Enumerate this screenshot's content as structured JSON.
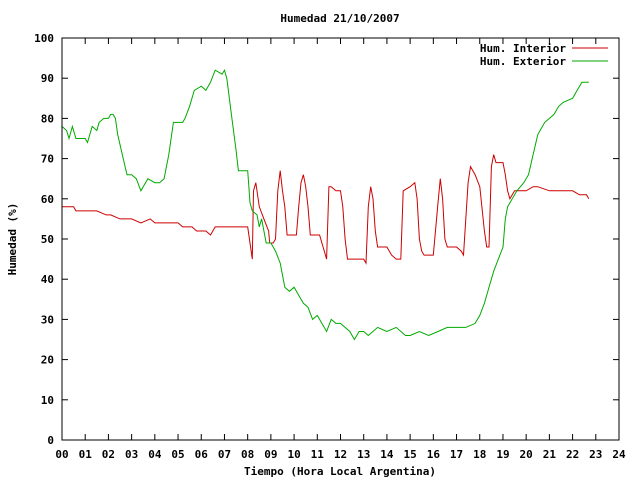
{
  "chart_data": {
    "type": "line",
    "title": "Humedad 21/10/2007",
    "xlabel": "Tiempo (Hora Local Argentina)",
    "ylabel": "Humedad (%)",
    "xlim": [
      0,
      24
    ],
    "ylim": [
      0,
      100
    ],
    "x_ticks": [
      0,
      1,
      2,
      3,
      4,
      5,
      6,
      7,
      8,
      9,
      10,
      11,
      12,
      13,
      14,
      15,
      16,
      17,
      18,
      19,
      20,
      21,
      22,
      23,
      24
    ],
    "x_tick_labels": [
      "00",
      "01",
      "02",
      "03",
      "04",
      "05",
      "06",
      "07",
      "08",
      "09",
      "10",
      "11",
      "12",
      "13",
      "14",
      "15",
      "16",
      "17",
      "18",
      "19",
      "20",
      "21",
      "22",
      "23",
      "24"
    ],
    "y_ticks": [
      0,
      10,
      20,
      30,
      40,
      50,
      60,
      70,
      80,
      90,
      100
    ],
    "y_tick_labels": [
      "0",
      "10",
      "20",
      "30",
      "40",
      "50",
      "60",
      "70",
      "80",
      "90",
      "100"
    ],
    "grid": false,
    "legend_position": "top-right",
    "series": [
      {
        "name": "Hum. Interior",
        "color": "#cc0000",
        "points": [
          [
            0.0,
            58
          ],
          [
            0.5,
            58
          ],
          [
            0.6,
            57
          ],
          [
            0.8,
            57
          ],
          [
            1.2,
            57
          ],
          [
            1.5,
            57
          ],
          [
            1.9,
            56
          ],
          [
            2.1,
            56
          ],
          [
            2.5,
            55
          ],
          [
            3.0,
            55
          ],
          [
            3.4,
            54
          ],
          [
            3.8,
            55
          ],
          [
            4.0,
            54
          ],
          [
            4.5,
            54
          ],
          [
            5.0,
            54
          ],
          [
            5.2,
            53
          ],
          [
            5.6,
            53
          ],
          [
            5.8,
            52
          ],
          [
            6.2,
            52
          ],
          [
            6.4,
            51
          ],
          [
            6.6,
            53
          ],
          [
            7.0,
            53
          ],
          [
            7.4,
            53
          ],
          [
            7.9,
            53
          ],
          [
            8.0,
            53
          ],
          [
            8.1,
            49
          ],
          [
            8.2,
            45
          ],
          [
            8.25,
            62
          ],
          [
            8.35,
            64
          ],
          [
            8.5,
            58
          ],
          [
            8.7,
            55
          ],
          [
            8.9,
            52
          ],
          [
            8.95,
            49
          ],
          [
            9.1,
            49
          ],
          [
            9.2,
            50
          ],
          [
            9.3,
            62
          ],
          [
            9.4,
            67
          ],
          [
            9.5,
            62
          ],
          [
            9.6,
            58
          ],
          [
            9.7,
            51
          ],
          [
            9.9,
            51
          ],
          [
            10.1,
            51
          ],
          [
            10.2,
            58
          ],
          [
            10.3,
            64
          ],
          [
            10.4,
            66
          ],
          [
            10.5,
            63
          ],
          [
            10.6,
            58
          ],
          [
            10.7,
            51
          ],
          [
            10.9,
            51
          ],
          [
            11.1,
            51
          ],
          [
            11.2,
            49
          ],
          [
            11.3,
            47
          ],
          [
            11.4,
            45
          ],
          [
            11.5,
            63
          ],
          [
            11.6,
            63
          ],
          [
            11.8,
            62
          ],
          [
            12.0,
            62
          ],
          [
            12.1,
            58
          ],
          [
            12.2,
            50
          ],
          [
            12.3,
            45
          ],
          [
            12.5,
            45
          ],
          [
            13.0,
            45
          ],
          [
            13.1,
            44
          ],
          [
            13.2,
            58
          ],
          [
            13.3,
            63
          ],
          [
            13.4,
            60
          ],
          [
            13.5,
            52
          ],
          [
            13.6,
            48
          ],
          [
            14.0,
            48
          ],
          [
            14.2,
            46
          ],
          [
            14.4,
            45
          ],
          [
            14.6,
            45
          ],
          [
            14.7,
            62
          ],
          [
            15.0,
            63
          ],
          [
            15.2,
            64
          ],
          [
            15.3,
            60
          ],
          [
            15.4,
            50
          ],
          [
            15.5,
            47
          ],
          [
            15.6,
            46
          ],
          [
            16.0,
            46
          ],
          [
            16.2,
            59
          ],
          [
            16.3,
            65
          ],
          [
            16.4,
            60
          ],
          [
            16.5,
            50
          ],
          [
            16.6,
            48
          ],
          [
            17.0,
            48
          ],
          [
            17.2,
            47
          ],
          [
            17.3,
            46
          ],
          [
            17.5,
            64
          ],
          [
            17.6,
            68
          ],
          [
            17.8,
            66
          ],
          [
            18.0,
            63
          ],
          [
            18.2,
            52
          ],
          [
            18.3,
            48
          ],
          [
            18.4,
            48
          ],
          [
            18.5,
            68
          ],
          [
            18.6,
            71
          ],
          [
            18.7,
            69
          ],
          [
            19.0,
            69
          ],
          [
            19.1,
            66
          ],
          [
            19.2,
            62
          ],
          [
            19.3,
            60
          ],
          [
            19.5,
            62
          ],
          [
            20.0,
            62
          ],
          [
            20.3,
            63
          ],
          [
            20.5,
            63
          ],
          [
            21.0,
            62
          ],
          [
            21.3,
            62
          ],
          [
            21.6,
            62
          ],
          [
            22.0,
            62
          ],
          [
            22.3,
            61
          ],
          [
            22.6,
            61
          ],
          [
            22.7,
            60
          ]
        ]
      },
      {
        "name": "Hum. Exterior",
        "color": "#00aa00",
        "points": [
          [
            0.0,
            78
          ],
          [
            0.2,
            77
          ],
          [
            0.3,
            75
          ],
          [
            0.45,
            78
          ],
          [
            0.6,
            75
          ],
          [
            0.8,
            75
          ],
          [
            1.0,
            75
          ],
          [
            1.1,
            74
          ],
          [
            1.3,
            78
          ],
          [
            1.5,
            77
          ],
          [
            1.6,
            79
          ],
          [
            1.8,
            80
          ],
          [
            2.0,
            80
          ],
          [
            2.1,
            81
          ],
          [
            2.2,
            81
          ],
          [
            2.3,
            80
          ],
          [
            2.4,
            76
          ],
          [
            2.6,
            71
          ],
          [
            2.8,
            66
          ],
          [
            3.0,
            66
          ],
          [
            3.2,
            65
          ],
          [
            3.4,
            62
          ],
          [
            3.5,
            63
          ],
          [
            3.7,
            65
          ],
          [
            4.0,
            64
          ],
          [
            4.2,
            64
          ],
          [
            4.4,
            65
          ],
          [
            4.6,
            71
          ],
          [
            4.8,
            79
          ],
          [
            5.2,
            79
          ],
          [
            5.3,
            80
          ],
          [
            5.5,
            83
          ],
          [
            5.7,
            87
          ],
          [
            6.0,
            88
          ],
          [
            6.2,
            87
          ],
          [
            6.4,
            89
          ],
          [
            6.6,
            92
          ],
          [
            6.9,
            91
          ],
          [
            7.0,
            92
          ],
          [
            7.1,
            90
          ],
          [
            7.3,
            81
          ],
          [
            7.5,
            72
          ],
          [
            7.6,
            67
          ],
          [
            8.0,
            67
          ],
          [
            8.1,
            59
          ],
          [
            8.2,
            57
          ],
          [
            8.4,
            56
          ],
          [
            8.5,
            53
          ],
          [
            8.6,
            55
          ],
          [
            8.8,
            49
          ],
          [
            9.0,
            49
          ],
          [
            9.2,
            47
          ],
          [
            9.4,
            44
          ],
          [
            9.6,
            38
          ],
          [
            9.8,
            37
          ],
          [
            10.0,
            38
          ],
          [
            10.2,
            36
          ],
          [
            10.4,
            34
          ],
          [
            10.6,
            33
          ],
          [
            10.8,
            30
          ],
          [
            11.0,
            31
          ],
          [
            11.2,
            29
          ],
          [
            11.4,
            27
          ],
          [
            11.6,
            30
          ],
          [
            11.8,
            29
          ],
          [
            12.0,
            29
          ],
          [
            12.2,
            28
          ],
          [
            12.4,
            27
          ],
          [
            12.6,
            25
          ],
          [
            12.8,
            27
          ],
          [
            13.0,
            27
          ],
          [
            13.2,
            26
          ],
          [
            13.4,
            27
          ],
          [
            13.6,
            28
          ],
          [
            14.0,
            27
          ],
          [
            14.4,
            28
          ],
          [
            14.8,
            26
          ],
          [
            15.0,
            26
          ],
          [
            15.4,
            27
          ],
          [
            15.8,
            26
          ],
          [
            16.2,
            27
          ],
          [
            16.6,
            28
          ],
          [
            17.0,
            28
          ],
          [
            17.4,
            28
          ],
          [
            17.8,
            29
          ],
          [
            18.0,
            31
          ],
          [
            18.2,
            34
          ],
          [
            18.4,
            38
          ],
          [
            18.6,
            42
          ],
          [
            19.0,
            48
          ],
          [
            19.1,
            55
          ],
          [
            19.2,
            58
          ],
          [
            19.3,
            59
          ],
          [
            19.6,
            62
          ],
          [
            19.9,
            64
          ],
          [
            20.1,
            66
          ],
          [
            20.3,
            71
          ],
          [
            20.5,
            76
          ],
          [
            20.8,
            79
          ],
          [
            21.0,
            80
          ],
          [
            21.2,
            81
          ],
          [
            21.4,
            83
          ],
          [
            21.6,
            84
          ],
          [
            22.0,
            85
          ],
          [
            22.2,
            87
          ],
          [
            22.4,
            89
          ],
          [
            22.7,
            89
          ]
        ]
      }
    ]
  }
}
